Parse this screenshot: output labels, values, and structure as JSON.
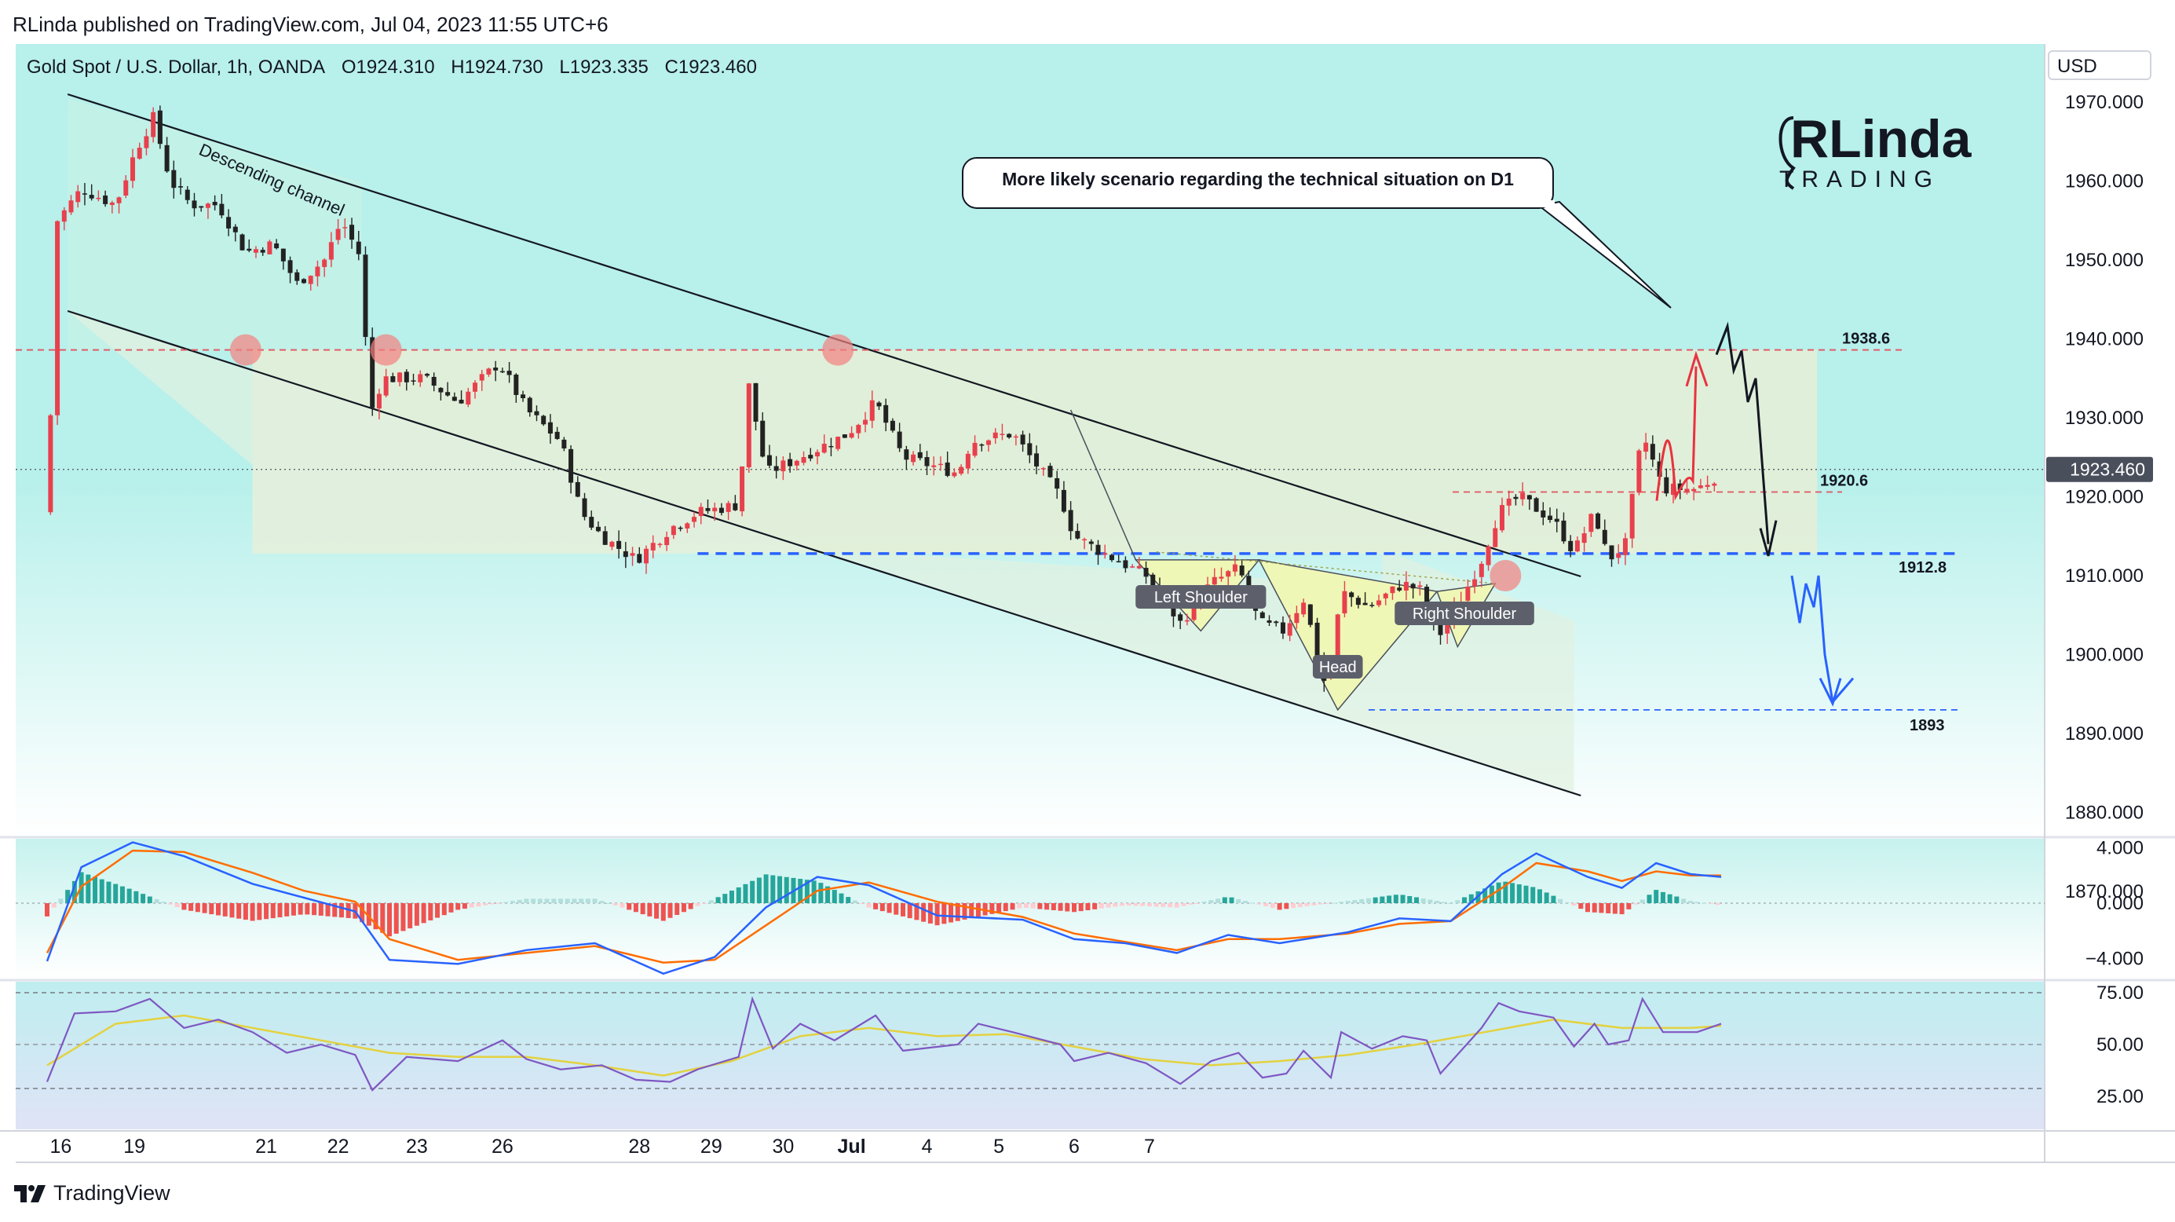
{
  "header": {
    "published": "RLinda published on TradingView.com, Jul 04, 2023 11:55 UTC+6"
  },
  "symbol": {
    "name": "Gold Spot / U.S. Dollar, 1h, OANDA",
    "open": "O1924.310",
    "high": "H1924.730",
    "low": "L1923.335",
    "close": "C1923.460"
  },
  "currency_button": "USD",
  "logo": {
    "brand": "RLinda",
    "sub": "TRADING"
  },
  "callout": "More likely scenario regarding the technical situation on D1",
  "footer": {
    "brand": "TradingView"
  },
  "colors": {
    "background": "#b5efea",
    "up_candle": "#e8404d",
    "down_candle": "#222222",
    "price_tag": "#4a4f5c",
    "level_red": "#e05561",
    "level_blue": "#2962ff",
    "zone_fill": "#e6efd6",
    "macd_line": "#2962ff",
    "signal_line": "#ff6d00",
    "rsi_line": "#7e57c2",
    "rsi_ma": "#e3d240"
  },
  "icons": {
    "tradingview": "tradingview-logo-icon",
    "logo": "rlinda-logo-icon"
  },
  "chart_data": [
    {
      "type": "candlestick",
      "title": "Gold Spot / U.S. Dollar, 1h, OANDA",
      "y_range": [
        1865,
        1975
      ],
      "y_ticks": [
        "1970.000",
        "1960.000",
        "1950.000",
        "1940.000",
        "1930.000",
        "1920.000",
        "1910.000",
        "1900.000",
        "1890.000",
        "1880.000",
        "1870.000"
      ],
      "y_tick_values": [
        1970,
        1960,
        1950,
        1940,
        1930,
        1920,
        1910,
        1900,
        1890,
        1880,
        1870
      ],
      "x_ticks": [
        "16",
        "19",
        "21",
        "22",
        "23",
        "26",
        "28",
        "29",
        "30",
        "Jul",
        "4",
        "5",
        "6",
        "7"
      ],
      "last_price": "1923.460",
      "price_path": [
        [
          0,
          1918
        ],
        [
          0.3,
          1955
        ],
        [
          1,
          1959
        ],
        [
          2,
          1957
        ],
        [
          2.6,
          1964
        ],
        [
          3.1,
          1968
        ],
        [
          3.6,
          1960
        ],
        [
          4.2,
          1957
        ],
        [
          5,
          1957
        ],
        [
          5.8,
          1951
        ],
        [
          6.6,
          1952
        ],
        [
          7.3,
          1947
        ],
        [
          8.1,
          1950
        ],
        [
          8.6,
          1955
        ],
        [
          9.2,
          1950
        ],
        [
          9.4,
          1930
        ],
        [
          9.8,
          1935
        ],
        [
          11,
          1935
        ],
        [
          12,
          1932
        ],
        [
          13.2,
          1937
        ],
        [
          14,
          1931
        ],
        [
          15,
          1927
        ],
        [
          15.6,
          1918
        ],
        [
          16.2,
          1915
        ],
        [
          17.2,
          1912
        ],
        [
          18.2,
          1916
        ],
        [
          19,
          1918
        ],
        [
          20.2,
          1919
        ],
        [
          20.5,
          1934
        ],
        [
          21,
          1923
        ],
        [
          22,
          1925
        ],
        [
          23.4,
          1928
        ],
        [
          24.2,
          1932
        ],
        [
          25,
          1925
        ],
        [
          26.6,
          1923
        ],
        [
          27,
          1927
        ],
        [
          28.2,
          1928
        ],
        [
          29.6,
          1920
        ],
        [
          30,
          1915
        ],
        [
          30.8,
          1913
        ],
        [
          32.1,
          1910
        ],
        [
          33.1,
          1904
        ],
        [
          34,
          1909
        ],
        [
          34.8,
          1911
        ],
        [
          35.4,
          1904
        ],
        [
          36.1,
          1903
        ],
        [
          36.7,
          1907
        ],
        [
          37.4,
          1895
        ],
        [
          37.8,
          1908
        ],
        [
          38.6,
          1906
        ],
        [
          39.6,
          1909
        ],
        [
          40.2,
          1908
        ],
        [
          40.6,
          1902
        ],
        [
          41.3,
          1907
        ],
        [
          41.9,
          1912
        ],
        [
          42.4,
          1918
        ],
        [
          43,
          1920
        ],
        [
          44,
          1917
        ],
        [
          44.6,
          1913
        ],
        [
          45.2,
          1918
        ],
        [
          45.6,
          1912
        ],
        [
          46.1,
          1914
        ],
        [
          46.6,
          1928
        ],
        [
          47.2,
          1921
        ],
        [
          48.2,
          1921
        ],
        [
          48.9,
          1923
        ]
      ],
      "levels": [
        {
          "label": "1938.6",
          "value": 1938.6,
          "color": "red",
          "style": "dashed"
        },
        {
          "label": "1920.6",
          "value": 1920.6,
          "color": "red",
          "style": "dashed"
        },
        {
          "label": "1912.8",
          "value": 1912.8,
          "color": "blue",
          "style": "dashed"
        },
        {
          "label": "1893",
          "value": 1893,
          "color": "blue",
          "style": "dashed"
        }
      ],
      "annotations": [
        "Descending channel",
        "Left Shoulder",
        "Head",
        "Right Shoulder"
      ]
    },
    {
      "type": "line",
      "indicator": "MACD",
      "y_range": [
        -6,
        6.5
      ],
      "y_ticks": [
        "4.000",
        "0.000",
        "−4.000"
      ],
      "y_tick_values": [
        4,
        0,
        -4
      ],
      "series": [
        {
          "name": "MACD",
          "points": [
            [
              0,
              -4.2
            ],
            [
              1,
              2.6
            ],
            [
              2.5,
              4.4
            ],
            [
              4,
              3.4
            ],
            [
              6,
              1.4
            ],
            [
              7.5,
              0.4
            ],
            [
              9,
              -0.6
            ],
            [
              10,
              -4.1
            ],
            [
              12,
              -4.4
            ],
            [
              14,
              -3.4
            ],
            [
              16,
              -2.9
            ],
            [
              18,
              -5.1
            ],
            [
              19.5,
              -3.9
            ],
            [
              21,
              -0.3
            ],
            [
              22.5,
              1.9
            ],
            [
              24,
              1.3
            ],
            [
              26,
              -0.9
            ],
            [
              28.5,
              -1.2
            ],
            [
              30,
              -2.6
            ],
            [
              31.5,
              -2.9
            ],
            [
              33,
              -3.6
            ],
            [
              34.5,
              -2.3
            ],
            [
              36,
              -2.9
            ],
            [
              38,
              -2.1
            ],
            [
              39.5,
              -1.1
            ],
            [
              41,
              -1.3
            ],
            [
              42.5,
              2.1
            ],
            [
              43.5,
              3.6
            ],
            [
              45,
              1.9
            ],
            [
              46,
              1.1
            ],
            [
              47,
              2.9
            ],
            [
              48,
              2.1
            ],
            [
              48.9,
              1.9
            ]
          ]
        },
        {
          "name": "Signal",
          "points": [
            [
              0,
              -3.6
            ],
            [
              1,
              1.2
            ],
            [
              2.5,
              3.8
            ],
            [
              4,
              3.7
            ],
            [
              6,
              2.2
            ],
            [
              7.5,
              0.9
            ],
            [
              9,
              0.1
            ],
            [
              10,
              -2.6
            ],
            [
              12,
              -4.1
            ],
            [
              14,
              -3.6
            ],
            [
              16,
              -3.1
            ],
            [
              18,
              -4.3
            ],
            [
              19.5,
              -4.1
            ],
            [
              21,
              -1.6
            ],
            [
              22.5,
              0.9
            ],
            [
              24,
              1.5
            ],
            [
              26,
              0.1
            ],
            [
              28.5,
              -1.0
            ],
            [
              30,
              -2.2
            ],
            [
              31.5,
              -2.8
            ],
            [
              33,
              -3.4
            ],
            [
              34.5,
              -2.6
            ],
            [
              36,
              -2.6
            ],
            [
              38,
              -2.2
            ],
            [
              39.5,
              -1.5
            ],
            [
              41,
              -1.3
            ],
            [
              42.5,
              1.1
            ],
            [
              43.5,
              2.9
            ],
            [
              45,
              2.3
            ],
            [
              46,
              1.6
            ],
            [
              47,
              2.3
            ],
            [
              48,
              2.0
            ],
            [
              48.9,
              2.0
            ]
          ]
        }
      ]
    },
    {
      "type": "line",
      "indicator": "RSI",
      "y_range": [
        12,
        78
      ],
      "y_ticks": [
        "75.00",
        "50.00",
        "25.00"
      ],
      "y_tick_values": [
        75,
        50,
        25
      ],
      "series": [
        {
          "name": "RSI",
          "points": [
            [
              0,
              32
            ],
            [
              0.8,
              65
            ],
            [
              2,
              66
            ],
            [
              3,
              72
            ],
            [
              4,
              58
            ],
            [
              5,
              62
            ],
            [
              6,
              56
            ],
            [
              7,
              46
            ],
            [
              8,
              50
            ],
            [
              9,
              45
            ],
            [
              9.5,
              28
            ],
            [
              10.5,
              44
            ],
            [
              12,
              42
            ],
            [
              13.3,
              52
            ],
            [
              14,
              43
            ],
            [
              15,
              38
            ],
            [
              16.2,
              40
            ],
            [
              17.2,
              33
            ],
            [
              18.2,
              32
            ],
            [
              19,
              38
            ],
            [
              20.2,
              44
            ],
            [
              20.6,
              72
            ],
            [
              21.2,
              48
            ],
            [
              22,
              60
            ],
            [
              23,
              52
            ],
            [
              24.2,
              64
            ],
            [
              25,
              47
            ],
            [
              26.6,
              50
            ],
            [
              27.2,
              60
            ],
            [
              28.2,
              56
            ],
            [
              29.6,
              50
            ],
            [
              30,
              42
            ],
            [
              31,
              46
            ],
            [
              32.1,
              41
            ],
            [
              33.1,
              31
            ],
            [
              34,
              42
            ],
            [
              34.8,
              46
            ],
            [
              35.5,
              34
            ],
            [
              36.2,
              36
            ],
            [
              36.7,
              47
            ],
            [
              37.5,
              34
            ],
            [
              37.8,
              56
            ],
            [
              38.7,
              48
            ],
            [
              39.6,
              54
            ],
            [
              40.3,
              52
            ],
            [
              40.7,
              36
            ],
            [
              41.3,
              47
            ],
            [
              41.9,
              58
            ],
            [
              42.4,
              70
            ],
            [
              43,
              66
            ],
            [
              44,
              63
            ],
            [
              44.6,
              49
            ],
            [
              45.2,
              60
            ],
            [
              45.6,
              50
            ],
            [
              46.2,
              52
            ],
            [
              46.6,
              72
            ],
            [
              47.2,
              56
            ],
            [
              48.2,
              56
            ],
            [
              48.9,
              60
            ]
          ]
        },
        {
          "name": "RSI MA",
          "points": [
            [
              0,
              40
            ],
            [
              2,
              60
            ],
            [
              4,
              64
            ],
            [
              6,
              58
            ],
            [
              8,
              52
            ],
            [
              10,
              46
            ],
            [
              12,
              44
            ],
            [
              14,
              44
            ],
            [
              16,
              40
            ],
            [
              18,
              35
            ],
            [
              20,
              42
            ],
            [
              22,
              54
            ],
            [
              24,
              58
            ],
            [
              26,
              54
            ],
            [
              28,
              55
            ],
            [
              30,
              49
            ],
            [
              32,
              43
            ],
            [
              34,
              40
            ],
            [
              36,
              42
            ],
            [
              38,
              45
            ],
            [
              40,
              50
            ],
            [
              42,
              56
            ],
            [
              44,
              62
            ],
            [
              46,
              58
            ],
            [
              48,
              58
            ],
            [
              48.9,
              59
            ]
          ]
        }
      ]
    }
  ]
}
